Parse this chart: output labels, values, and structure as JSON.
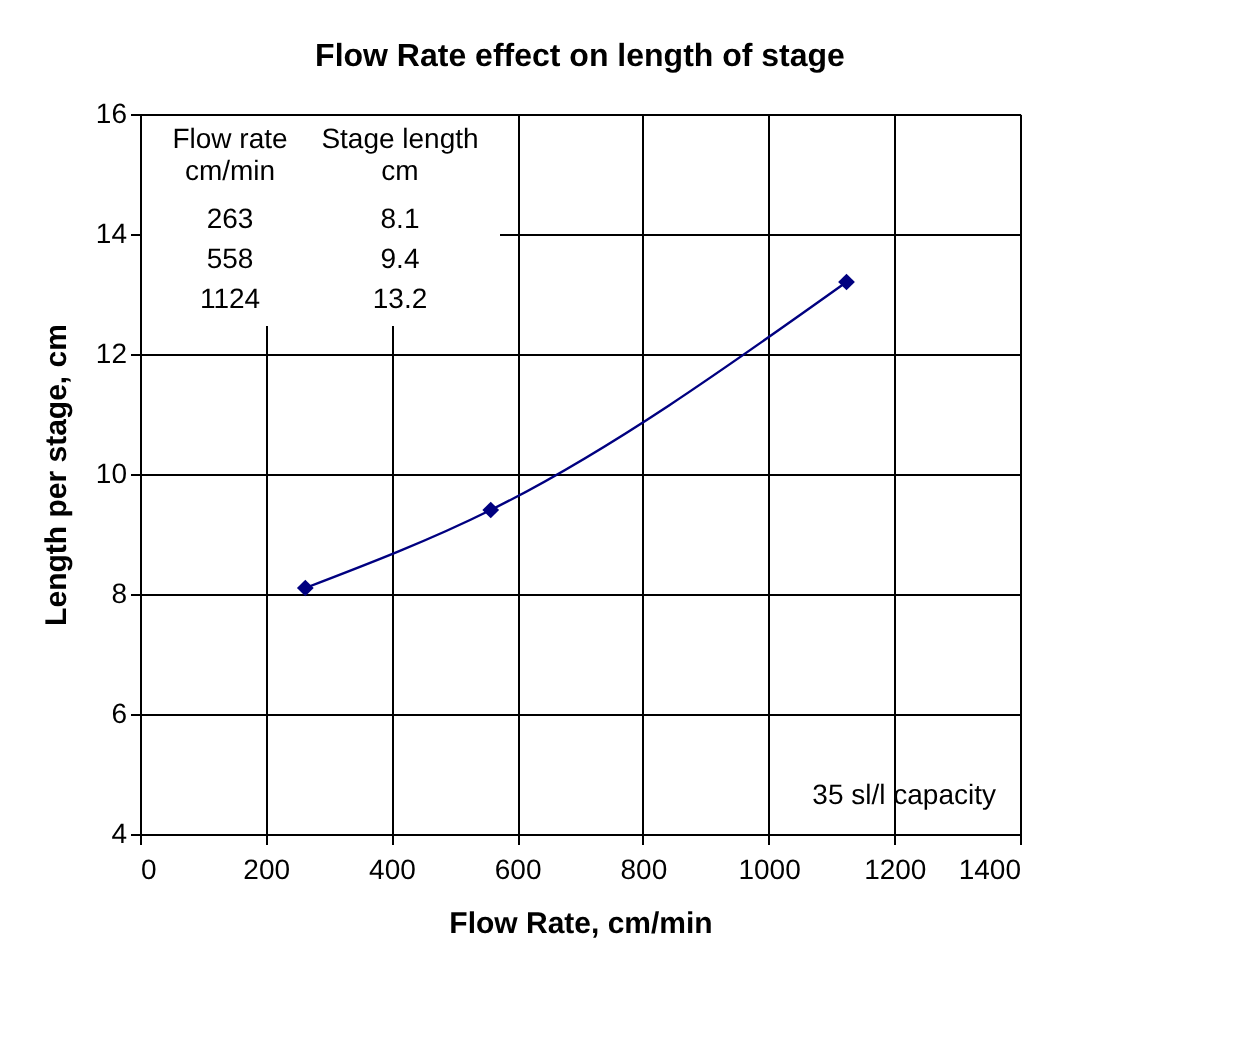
{
  "chart_data": {
    "type": "line",
    "title": "Flow Rate effect on length of stage",
    "xlabel": "Flow Rate, cm/min",
    "ylabel": "Length per stage, cm",
    "x": [
      263,
      558,
      1124
    ],
    "series": [
      {
        "color": "#000080",
        "values": [
          8.1,
          9.4,
          13.2
        ]
      }
    ],
    "xlim": [
      0,
      1400
    ],
    "xticks": [
      0,
      200,
      400,
      600,
      800,
      1000,
      1200,
      1400
    ],
    "ylim": [
      4,
      16
    ],
    "yticks": [
      4,
      6,
      8,
      10,
      12,
      14,
      16
    ],
    "grid": true,
    "marker": "diamond",
    "line_style": "solid",
    "annotations": [
      "Flow rate\ncm/min",
      "Stage length\ncm",
      "263",
      "8.1",
      "558",
      "9.4",
      "1124",
      "13.2",
      "35 sl/l capacity"
    ]
  }
}
